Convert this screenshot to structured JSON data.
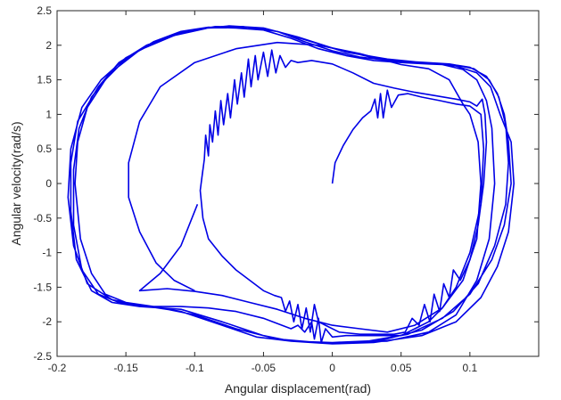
{
  "chart_data": {
    "type": "line",
    "title": "",
    "xlabel": "Angular displacement(rad)",
    "ylabel": "Angular velocity(rad/s)",
    "xlim": [
      -0.2,
      0.15
    ],
    "ylim": [
      -2.5,
      2.5
    ],
    "x_ticks": [
      -0.2,
      -0.15,
      -0.1,
      -0.05,
      0,
      0.05,
      0.1
    ],
    "x_tick_labels": [
      "-0.2",
      "-0.15",
      "-0.1",
      "-0.05",
      "0",
      "0.05",
      "0.1"
    ],
    "y_ticks": [
      -2.5,
      -2,
      -1.5,
      -1,
      -0.5,
      0,
      0.5,
      1,
      1.5,
      2,
      2.5
    ],
    "y_tick_labels": [
      "-2.5",
      "-2",
      "-1.5",
      "-1",
      "-0.5",
      "0",
      "0.5",
      "1",
      "1.5",
      "2",
      "2.5"
    ],
    "grid": false,
    "line_color": "#0000e6",
    "series": [
      {
        "values": [
          [
            0,
            0
          ],
          [
            0.002,
            0.3
          ],
          [
            0.008,
            0.55
          ],
          [
            0.015,
            0.78
          ],
          [
            0.022,
            0.95
          ],
          [
            0.028,
            1.05
          ],
          [
            0.031,
            1.22
          ],
          [
            0.033,
            0.95
          ],
          [
            0.035,
            1.3
          ],
          [
            0.037,
            0.95
          ],
          [
            0.04,
            1.35
          ],
          [
            0.043,
            1.1
          ],
          [
            0.048,
            1.28
          ],
          [
            0.055,
            1.3
          ],
          [
            0.065,
            1.25
          ],
          [
            0.078,
            1.2
          ],
          [
            0.09,
            1.15
          ],
          [
            0.1,
            1.12
          ],
          [
            0.108,
            1.0
          ],
          [
            0.11,
            0.5
          ],
          [
            0.108,
            -0.3
          ],
          [
            0.1,
            -1.0
          ],
          [
            0.09,
            -1.5
          ],
          [
            0.08,
            -1.8
          ],
          [
            0.07,
            -2.0
          ],
          [
            0.06,
            -2.1
          ],
          [
            0.05,
            -2.2
          ],
          [
            0.03,
            -2.2
          ],
          [
            0.01,
            -2.2
          ],
          [
            0,
            -2.22
          ],
          [
            -0.005,
            -2.1
          ],
          [
            -0.008,
            -2.3
          ],
          [
            -0.01,
            -1.95
          ],
          [
            -0.013,
            -2.25
          ],
          [
            -0.015,
            -2.0
          ],
          [
            -0.02,
            -2.15
          ],
          [
            -0.025,
            -2.05
          ],
          [
            -0.03,
            -2.1
          ],
          [
            -0.05,
            -1.95
          ],
          [
            -0.07,
            -1.85
          ],
          [
            -0.09,
            -1.8
          ],
          [
            -0.11,
            -1.78
          ],
          [
            -0.13,
            -1.78
          ],
          [
            -0.15,
            -1.72
          ],
          [
            -0.165,
            -1.6
          ],
          [
            -0.175,
            -1.3
          ],
          [
            -0.183,
            -0.8
          ],
          [
            -0.187,
            0
          ],
          [
            -0.185,
            0.6
          ],
          [
            -0.178,
            1.1
          ],
          [
            -0.165,
            1.5
          ],
          [
            -0.15,
            1.8
          ],
          [
            -0.13,
            2.05
          ],
          [
            -0.11,
            2.2
          ],
          [
            -0.09,
            2.26
          ],
          [
            -0.07,
            2.25
          ],
          [
            -0.05,
            2.22
          ],
          [
            -0.03,
            2.1
          ],
          [
            -0.01,
            1.95
          ],
          [
            0.01,
            1.85
          ],
          [
            0.03,
            1.78
          ],
          [
            0.05,
            1.75
          ],
          [
            0.07,
            1.73
          ],
          [
            0.08,
            1.72
          ],
          [
            0.095,
            1.65
          ],
          [
            0.105,
            1.5
          ],
          [
            0.112,
            1.2
          ],
          [
            0.116,
            0.8
          ],
          [
            0.118,
            0
          ],
          [
            0.114,
            -0.8
          ],
          [
            0.105,
            -1.4
          ],
          [
            0.09,
            -1.9
          ],
          [
            0.07,
            -2.15
          ],
          [
            0.04,
            -2.28
          ],
          [
            0,
            -2.3
          ],
          [
            -0.03,
            -2.28
          ],
          [
            -0.05,
            -2.2
          ],
          [
            -0.08,
            -2.0
          ],
          [
            -0.11,
            -1.82
          ],
          [
            -0.14,
            -1.78
          ],
          [
            -0.16,
            -1.72
          ],
          [
            -0.175,
            -1.55
          ],
          [
            -0.186,
            -1.1
          ],
          [
            -0.19,
            -0.4
          ],
          [
            -0.19,
            0.3
          ],
          [
            -0.185,
            0.9
          ],
          [
            -0.17,
            1.4
          ],
          [
            -0.155,
            1.75
          ],
          [
            -0.135,
            2.0
          ],
          [
            -0.11,
            2.18
          ],
          [
            -0.085,
            2.27
          ],
          [
            -0.06,
            2.26
          ],
          [
            -0.04,
            2.2
          ],
          [
            -0.02,
            2.05
          ],
          [
            0.0,
            1.92
          ],
          [
            0.02,
            1.83
          ],
          [
            0.045,
            1.77
          ],
          [
            0.07,
            1.74
          ],
          [
            0.09,
            1.7
          ],
          [
            0.105,
            1.6
          ],
          [
            0.115,
            1.4
          ],
          [
            0.122,
            1.0
          ],
          [
            0.13,
            0.6
          ],
          [
            0.132,
            0
          ],
          [
            0.128,
            -0.7
          ],
          [
            0.12,
            -1.2
          ],
          [
            0.108,
            -1.65
          ],
          [
            0.09,
            -2.0
          ],
          [
            0.065,
            -2.2
          ],
          [
            0.03,
            -2.3
          ],
          [
            0,
            -2.32
          ],
          [
            -0.03,
            -2.28
          ],
          [
            -0.055,
            -2.22
          ],
          [
            -0.08,
            -2.05
          ],
          [
            -0.11,
            -1.85
          ],
          [
            -0.14,
            -1.76
          ],
          [
            -0.16,
            -1.68
          ],
          [
            -0.178,
            -1.45
          ],
          [
            -0.188,
            -0.9
          ],
          [
            -0.192,
            -0.2
          ],
          [
            -0.19,
            0.5
          ],
          [
            -0.182,
            1.1
          ],
          [
            -0.168,
            1.5
          ],
          [
            -0.15,
            1.82
          ],
          [
            -0.125,
            2.08
          ],
          [
            -0.1,
            2.23
          ],
          [
            -0.075,
            2.28
          ],
          [
            -0.05,
            2.25
          ],
          [
            -0.025,
            2.12
          ],
          [
            0.0,
            1.96
          ],
          [
            0.03,
            1.82
          ],
          [
            0.06,
            1.76
          ],
          [
            0.085,
            1.73
          ],
          [
            0.1,
            1.68
          ],
          [
            0.112,
            1.55
          ],
          [
            0.12,
            1.3
          ],
          [
            0.125,
            1.0
          ],
          [
            0.128,
            0.6
          ],
          [
            0.13,
            0
          ],
          [
            0.125,
            -0.6
          ],
          [
            0.116,
            -1.1
          ],
          [
            0.1,
            -1.6
          ],
          [
            0.08,
            -1.95
          ],
          [
            0.055,
            -2.18
          ],
          [
            0.02,
            -2.3
          ],
          [
            -0.01,
            -2.3
          ],
          [
            -0.04,
            -2.25
          ],
          [
            -0.07,
            -2.1
          ],
          [
            -0.1,
            -1.9
          ],
          [
            -0.13,
            -1.78
          ],
          [
            -0.155,
            -1.72
          ],
          [
            -0.17,
            -1.6
          ],
          [
            -0.182,
            -1.25
          ],
          [
            -0.188,
            -0.6
          ],
          [
            -0.188,
            0.2
          ],
          [
            -0.184,
            0.8
          ],
          [
            -0.175,
            1.25
          ],
          [
            -0.16,
            1.62
          ],
          [
            -0.14,
            1.93
          ],
          [
            -0.115,
            2.14
          ],
          [
            -0.09,
            2.25
          ],
          [
            -0.065,
            2.27
          ],
          [
            -0.04,
            2.2
          ],
          [
            -0.015,
            2.05
          ],
          [
            0.01,
            1.9
          ],
          [
            0.04,
            1.8
          ],
          [
            0.065,
            1.75
          ],
          [
            0.088,
            1.72
          ],
          [
            0.103,
            1.66
          ],
          [
            0.114,
            1.5
          ],
          [
            0.121,
            1.25
          ],
          [
            0.126,
            0.85
          ],
          [
            0.128,
            0.3
          ],
          [
            0.126,
            -0.3
          ],
          [
            0.118,
            -0.9
          ],
          [
            0.106,
            -1.45
          ],
          [
            0.088,
            -1.85
          ],
          [
            0.065,
            -2.12
          ],
          [
            0.035,
            -2.27
          ],
          [
            0,
            -2.3
          ]
        ]
      },
      {
        "values": [
          [
            -0.095,
            -0.3
          ],
          [
            -0.096,
            -0.1
          ],
          [
            -0.094,
            0.2
          ],
          [
            -0.095,
            0.05
          ],
          [
            -0.093,
            0.35
          ],
          [
            -0.092,
            0.7
          ],
          [
            -0.09,
            0.4
          ],
          [
            -0.089,
            0.85
          ],
          [
            -0.087,
            0.6
          ],
          [
            -0.085,
            1.05
          ],
          [
            -0.083,
            0.7
          ],
          [
            -0.081,
            1.2
          ],
          [
            -0.079,
            0.85
          ],
          [
            -0.076,
            1.3
          ],
          [
            -0.074,
            0.95
          ],
          [
            -0.071,
            1.5
          ],
          [
            -0.069,
            1.15
          ],
          [
            -0.066,
            1.6
          ],
          [
            -0.064,
            1.25
          ],
          [
            -0.061,
            1.8
          ],
          [
            -0.059,
            1.4
          ],
          [
            -0.056,
            1.85
          ],
          [
            -0.054,
            1.5
          ],
          [
            -0.05,
            1.9
          ],
          [
            -0.047,
            1.55
          ],
          [
            -0.044,
            1.93
          ],
          [
            -0.041,
            1.6
          ],
          [
            -0.038,
            1.85
          ],
          [
            -0.034,
            1.68
          ],
          [
            -0.03,
            1.78
          ],
          [
            -0.025,
            1.75
          ],
          [
            -0.015,
            1.78
          ],
          [
            0.0,
            1.73
          ],
          [
            0.015,
            1.6
          ],
          [
            0.03,
            1.45
          ],
          [
            0.045,
            1.38
          ],
          [
            0.06,
            1.32
          ],
          [
            0.075,
            1.27
          ],
          [
            0.09,
            1.22
          ],
          [
            0.1,
            1.18
          ],
          [
            0.105,
            1.12
          ],
          [
            0.109,
            1.22
          ],
          [
            0.111,
            1.0
          ],
          [
            0.112,
            0.6
          ],
          [
            0.11,
            0.0
          ],
          [
            0.106,
            -0.6
          ],
          [
            0.1,
            -1.1
          ],
          [
            0.093,
            -1.4
          ],
          [
            0.088,
            -1.25
          ],
          [
            0.085,
            -1.65
          ],
          [
            0.081,
            -1.45
          ],
          [
            0.078,
            -1.85
          ],
          [
            0.074,
            -1.6
          ],
          [
            0.071,
            -2.0
          ],
          [
            0.067,
            -1.75
          ],
          [
            0.063,
            -2.05
          ],
          [
            0.058,
            -1.95
          ],
          [
            0.053,
            -2.15
          ],
          [
            0.045,
            -2.18
          ],
          [
            0.035,
            -2.18
          ],
          [
            0.02,
            -2.18
          ],
          [
            0.005,
            -2.15
          ],
          [
            -0.005,
            -2.05
          ],
          [
            -0.01,
            -2.0
          ],
          [
            -0.013,
            -1.75
          ],
          [
            -0.016,
            -2.15
          ],
          [
            -0.019,
            -1.8
          ],
          [
            -0.022,
            -2.1
          ],
          [
            -0.025,
            -1.75
          ],
          [
            -0.028,
            -2.0
          ],
          [
            -0.031,
            -1.7
          ],
          [
            -0.034,
            -1.85
          ],
          [
            -0.037,
            -1.65
          ],
          [
            -0.042,
            -1.62
          ],
          [
            -0.05,
            -1.55
          ],
          [
            -0.06,
            -1.4
          ],
          [
            -0.07,
            -1.25
          ],
          [
            -0.08,
            -1.05
          ],
          [
            -0.09,
            -0.8
          ],
          [
            -0.094,
            -0.5
          ],
          [
            -0.095,
            -0.3
          ]
        ]
      },
      {
        "values": [
          [
            -0.098,
            -0.3
          ],
          [
            -0.11,
            -0.9
          ],
          [
            -0.125,
            -1.3
          ],
          [
            -0.14,
            -1.55
          ],
          [
            -0.12,
            -1.52
          ],
          [
            -0.1,
            -1.56
          ],
          [
            -0.08,
            -1.62
          ],
          [
            -0.06,
            -1.72
          ],
          [
            -0.04,
            -1.82
          ],
          [
            -0.02,
            -1.95
          ],
          [
            0.0,
            -2.05
          ],
          [
            0.02,
            -2.1
          ],
          [
            0.04,
            -2.15
          ],
          [
            0.06,
            -2.05
          ],
          [
            0.08,
            -1.8
          ],
          [
            0.095,
            -1.4
          ],
          [
            0.105,
            -0.8
          ],
          [
            0.108,
            0
          ],
          [
            0.106,
            0.6
          ],
          [
            0.1,
            1.0
          ],
          [
            0.095,
            1.15
          ],
          [
            0.085,
            1.5
          ],
          [
            0.07,
            1.66
          ],
          [
            0.05,
            1.72
          ],
          [
            0.02,
            1.88
          ],
          [
            -0.01,
            2.0
          ],
          [
            -0.04,
            2.04
          ],
          [
            -0.07,
            1.95
          ],
          [
            -0.1,
            1.75
          ],
          [
            -0.125,
            1.4
          ],
          [
            -0.14,
            0.9
          ],
          [
            -0.148,
            0.3
          ],
          [
            -0.148,
            -0.2
          ],
          [
            -0.14,
            -0.7
          ],
          [
            -0.128,
            -1.15
          ],
          [
            -0.115,
            -1.4
          ],
          [
            -0.1,
            -1.55
          ]
        ]
      }
    ]
  }
}
